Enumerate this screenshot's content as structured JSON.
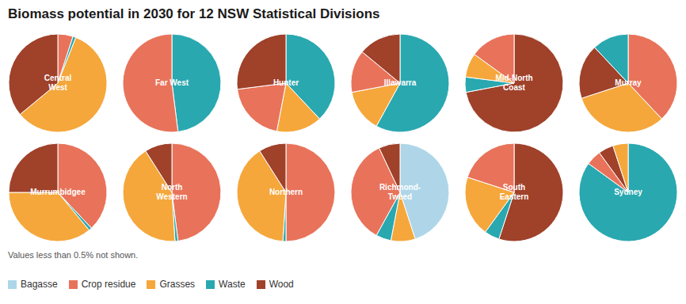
{
  "title": "Biomass potential in 2030 for 12 NSW Statistical Divisions",
  "annotations": [
    "Values less than 0.5% not shown."
  ],
  "legend": "bottom",
  "categories": [
    "Bagasse",
    "Crop residue",
    "Grasses",
    "Waste",
    "Wood"
  ],
  "colors": [
    "#aed6e8",
    "#e8735a",
    "#f5a73b",
    "#29a8b0",
    "#a0412a"
  ],
  "chart_data": [
    {
      "type": "pie",
      "title": "Central\nWest",
      "categories": [
        "Crop residue",
        "Waste",
        "Grasses",
        "Wood"
      ],
      "values": [
        5,
        1,
        58,
        36
      ],
      "colors": [
        "#e8735a",
        "#29a8b0",
        "#f5a73b",
        "#a0412a"
      ]
    },
    {
      "type": "pie",
      "title": "Far West",
      "categories": [
        "Waste",
        "Crop residue"
      ],
      "values": [
        48,
        52
      ],
      "colors": [
        "#29a8b0",
        "#e8735a"
      ]
    },
    {
      "type": "pie",
      "title": "Hunter",
      "categories": [
        "Waste",
        "Grasses",
        "Crop residue",
        "Wood"
      ],
      "values": [
        38,
        15,
        20,
        27
      ],
      "colors": [
        "#29a8b0",
        "#f5a73b",
        "#e8735a",
        "#a0412a"
      ]
    },
    {
      "type": "pie",
      "title": "Illawarra",
      "categories": [
        "Waste",
        "Grasses",
        "Crop residue",
        "Wood"
      ],
      "values": [
        58,
        14,
        14,
        14
      ],
      "colors": [
        "#29a8b0",
        "#f5a73b",
        "#e8735a",
        "#a0412a"
      ]
    },
    {
      "type": "pie",
      "title": "Mid-North\nCoast",
      "categories": [
        "Wood",
        "Waste",
        "Grasses",
        "Crop residue"
      ],
      "values": [
        72,
        5,
        8,
        15
      ],
      "colors": [
        "#a0412a",
        "#29a8b0",
        "#f5a73b",
        "#e8735a"
      ]
    },
    {
      "type": "pie",
      "title": "Murray",
      "categories": [
        "Crop residue",
        "Grasses",
        "Wood",
        "Waste"
      ],
      "values": [
        38,
        32,
        18,
        12
      ],
      "colors": [
        "#e8735a",
        "#f5a73b",
        "#a0412a",
        "#29a8b0"
      ]
    },
    {
      "type": "pie",
      "title": "Murrumbidgee",
      "categories": [
        "Crop residue",
        "Waste",
        "Grasses",
        "Wood"
      ],
      "values": [
        38,
        1,
        36,
        25
      ],
      "colors": [
        "#e8735a",
        "#29a8b0",
        "#f5a73b",
        "#a0412a"
      ]
    },
    {
      "type": "pie",
      "title": "North\nWestern",
      "categories": [
        "Crop residue",
        "Waste",
        "Grasses",
        "Wood"
      ],
      "values": [
        48,
        1,
        42,
        9
      ],
      "colors": [
        "#e8735a",
        "#29a8b0",
        "#f5a73b",
        "#a0412a"
      ]
    },
    {
      "type": "pie",
      "title": "Northern",
      "categories": [
        "Crop residue",
        "Waste",
        "Grasses",
        "Wood"
      ],
      "values": [
        50,
        1,
        40,
        9
      ],
      "colors": [
        "#e8735a",
        "#29a8b0",
        "#f5a73b",
        "#a0412a"
      ]
    },
    {
      "type": "pie",
      "title": "Richmond-\nTweed",
      "categories": [
        "Bagasse",
        "Grasses",
        "Waste",
        "Crop residue",
        "Wood"
      ],
      "values": [
        45,
        8,
        5,
        35,
        7
      ],
      "colors": [
        "#aed6e8",
        "#f5a73b",
        "#29a8b0",
        "#e8735a",
        "#a0412a"
      ]
    },
    {
      "type": "pie",
      "title": "South\nEastern",
      "categories": [
        "Wood",
        "Waste",
        "Grasses",
        "Crop residue"
      ],
      "values": [
        55,
        5,
        20,
        20
      ],
      "colors": [
        "#a0412a",
        "#29a8b0",
        "#f5a73b",
        "#e8735a"
      ]
    },
    {
      "type": "pie",
      "title": "Sydney",
      "categories": [
        "Waste",
        "Crop residue",
        "Wood",
        "Grasses"
      ],
      "values": [
        85,
        5,
        5,
        5
      ],
      "colors": [
        "#29a8b0",
        "#e8735a",
        "#a0412a",
        "#f5a73b"
      ]
    }
  ]
}
